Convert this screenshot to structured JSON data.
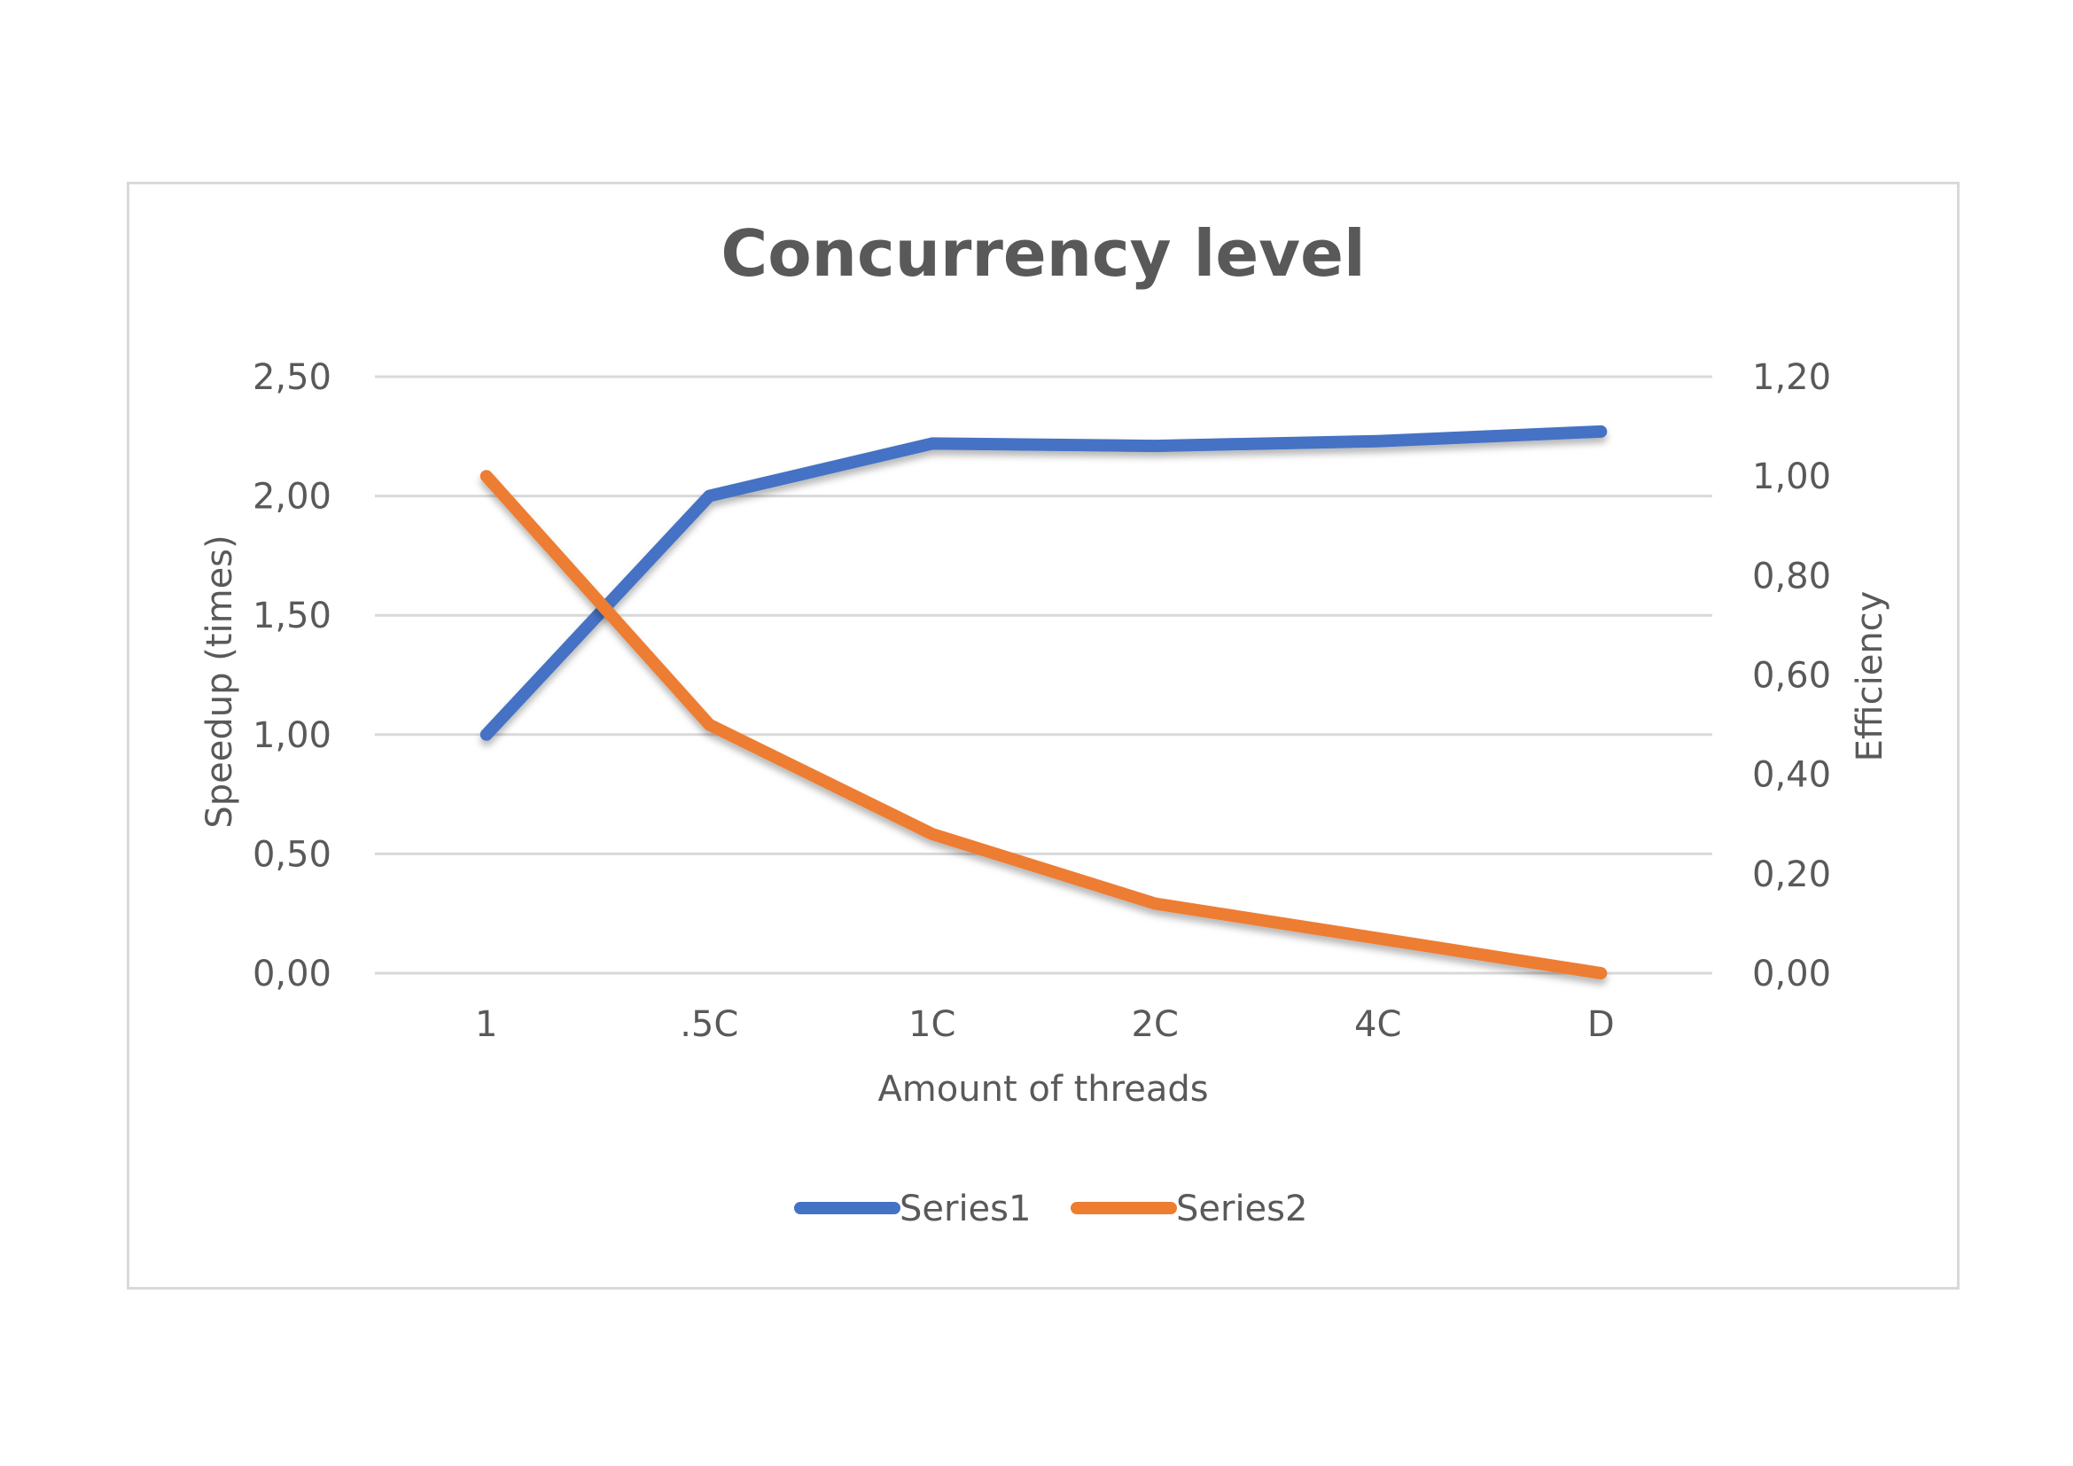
{
  "chart_data": {
    "type": "line",
    "title": "Concurrency level",
    "xlabel": "Amount of threads",
    "ylabel": "Speedup (times)",
    "y2label": "Efficiency",
    "categories": [
      "1",
      ".5C",
      "1C",
      "2C",
      "4C",
      "D"
    ],
    "ylim": [
      0,
      2.5
    ],
    "yticks": [
      "0,00",
      "0,50",
      "1,00",
      "1,50",
      "2,00",
      "2,50"
    ],
    "y2lim": [
      0,
      1.2
    ],
    "y2ticks": [
      "0,00",
      "0,20",
      "0,40",
      "0,60",
      "0,80",
      "1,00",
      "1,20"
    ],
    "grid": true,
    "legend_position": "bottom",
    "series": [
      {
        "name": "Series1",
        "axis": "left",
        "color": "#4472c4",
        "values": [
          1.0,
          2.0,
          2.22,
          2.21,
          2.23,
          2.27
        ]
      },
      {
        "name": "Series2",
        "axis": "right",
        "color": "#ed7d31",
        "values": [
          1.0,
          0.5,
          0.28,
          0.14,
          0.07,
          0.0
        ]
      }
    ]
  }
}
